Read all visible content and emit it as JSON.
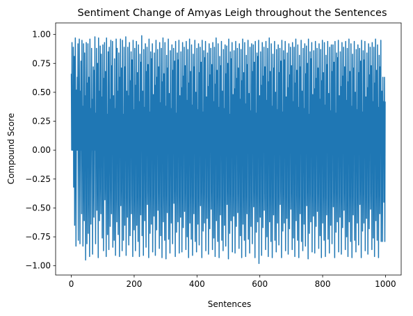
{
  "chart_data": {
    "type": "line",
    "title": "Sentiment Change of Amyas Leigh throughout the Sentences",
    "xlabel": "Sentences",
    "ylabel": "Compound Score",
    "xlim": [
      -50,
      1050
    ],
    "ylim": [
      -1.08,
      1.1
    ],
    "xticks": [
      0,
      200,
      400,
      600,
      800,
      1000
    ],
    "yticks": [
      -1.0,
      -0.75,
      -0.5,
      -0.25,
      0.0,
      0.25,
      0.5,
      0.75,
      1.0
    ],
    "xtick_labels": [
      "0",
      "200",
      "400",
      "600",
      "800",
      "1000"
    ],
    "ytick_labels": [
      "−1.00",
      "−0.75",
      "−0.50",
      "−0.25",
      "0.00",
      "0.25",
      "0.50",
      "0.75",
      "1.00"
    ],
    "grid": false,
    "series_color": "#1f77b4",
    "n_points": 1000,
    "x_start": 0,
    "x_step": 1,
    "series": [
      {
        "values": [
          0.66,
          0.0,
          0.93,
          0.0,
          0.45,
          0.0,
          0.89,
          -0.32,
          0.0,
          0.81,
          -0.65,
          0.0,
          0.97,
          0.42,
          -0.83,
          0.0,
          0.52,
          0.0,
          0.63,
          0.0,
          0.92,
          -0.78,
          0.0,
          0.34,
          0.96,
          0.0,
          -0.81,
          0.51,
          0.0,
          0.77,
          0.0,
          -0.55,
          0.95,
          0.0,
          0.38,
          -0.83,
          0.0,
          0.92,
          0.0,
          -0.61,
          0.84,
          0.0,
          0.47,
          -0.95,
          0.0,
          0.93,
          0.0,
          -0.81,
          0.58,
          0.0,
          0.92,
          -0.72,
          0.0,
          0.63,
          0.0,
          -0.92,
          0.96,
          0.0,
          0.36,
          -0.64,
          0.0,
          0.88,
          0.0,
          0.44,
          -0.9,
          0.0,
          0.72,
          0.0,
          -0.58,
          0.69,
          0.0,
          0.98,
          0.0,
          -0.81,
          0.32,
          0.0,
          0.88,
          -0.52,
          0.0,
          0.75,
          0.0,
          -0.93,
          0.97,
          0.0,
          0.51,
          -0.61,
          0.0,
          0.9,
          0.0,
          -0.55,
          0.83,
          0.0,
          0.46,
          -0.76,
          0.0,
          0.91,
          0.0,
          -0.87,
          0.62,
          0.0,
          0.93,
          -0.43,
          0.0,
          0.68,
          0.0,
          -0.92,
          0.97,
          0.0,
          0.31,
          -0.73,
          0.0,
          0.85,
          0.0,
          -0.86,
          0.89,
          0.0,
          0.44,
          -0.66,
          0.0,
          0.95,
          0.0,
          -0.55,
          0.73,
          0.0,
          0.94,
          -0.84,
          0.0,
          0.47,
          0.0,
          -0.78,
          0.79,
          0.0,
          0.36,
          -0.91,
          0.0,
          0.96,
          0.0,
          -0.62,
          0.88,
          0.0,
          0.51,
          -0.73,
          0.0,
          0.84,
          0.0,
          -0.92,
          0.63,
          0.0,
          0.96,
          -0.48,
          0.0,
          0.71,
          0.0,
          -0.87,
          0.95,
          0.0,
          0.31,
          -0.78,
          0.0,
          0.89,
          0.0,
          -0.65,
          0.72,
          0.0,
          0.98,
          -0.91,
          0.0,
          0.51,
          0.0,
          -0.58,
          0.89,
          0.0,
          0.47,
          -0.82,
          0.0,
          0.93,
          0.0,
          -0.74,
          0.6,
          0.0,
          0.85,
          -0.55,
          0.0,
          0.78,
          0.0,
          -0.92,
          0.95,
          0.0,
          0.35,
          -0.69,
          0.0,
          0.88,
          0.0,
          -0.87,
          0.56,
          0.0,
          0.94,
          -0.65,
          0.0,
          0.67,
          0.0,
          -0.79,
          0.91,
          0.0,
          0.42,
          -0.92,
          0.0,
          0.83,
          0.0,
          -0.56,
          0.76,
          0.0,
          0.99,
          -0.74,
          0.0,
          0.51,
          0.0,
          -0.91,
          0.87,
          0.0,
          0.37,
          -0.61,
          0.0,
          0.92,
          0.0,
          -0.84,
          0.68,
          0.0,
          0.89,
          -0.47,
          0.0,
          0.74,
          0.0,
          -0.93,
          0.96,
          0.0,
          0.33,
          -0.72,
          0.0,
          0.85,
          0.0,
          -0.64,
          0.79,
          0.0,
          0.92,
          -0.88,
          0.0,
          0.48,
          0.0,
          -0.57,
          0.84,
          0.0,
          0.56,
          -0.91,
          0.0,
          0.95,
          0.0,
          -0.69,
          0.63,
          0.0,
          0.87,
          -0.52,
          0.0,
          0.72,
          0.0,
          -0.85,
          0.93,
          0.0,
          0.41,
          -0.74,
          0.0,
          0.88,
          0.0,
          -0.93,
          0.59,
          0.0,
          0.97,
          -0.62,
          0.0,
          0.66,
          0.0,
          -0.78,
          0.93,
          0.0,
          0.38,
          -0.94,
          0.0,
          0.82,
          0.0,
          -0.54,
          0.71,
          0.0,
          0.96,
          -0.77,
          0.0,
          0.49,
          0.0,
          -0.89,
          0.86,
          0.0,
          0.36,
          -0.63,
          0.0,
          0.91,
          0.0,
          -0.81,
          0.69,
          0.0,
          0.88,
          -0.46,
          0.0,
          0.77,
          0.0,
          -0.92,
          0.94,
          0.0,
          0.32,
          -0.71,
          0.0,
          0.84,
          0.0,
          -0.62,
          0.78,
          0.0,
          0.95,
          -0.89,
          0.0,
          0.47,
          0.0,
          -0.58,
          0.85,
          0.0,
          0.54,
          -0.88,
          0.0,
          0.93,
          0.0,
          -0.67,
          0.64,
          0.0,
          0.89,
          -0.53,
          0.0,
          0.73,
          0.0,
          -0.86,
          0.94,
          0.0,
          0.43,
          -0.75,
          0.0,
          0.87,
          0.0,
          -0.93,
          0.58,
          0.0,
          0.96,
          -0.63,
          0.0,
          0.68,
          0.0,
          -0.77,
          0.91,
          0.0,
          0.39,
          -0.91,
          0.0,
          0.83,
          0.0,
          -0.55,
          0.72,
          0.0,
          0.95,
          -0.79,
          0.0,
          0.5,
          0.0,
          -0.88,
          0.88,
          0.0,
          0.35,
          -0.64,
          0.0,
          0.92,
          0.0,
          -0.82,
          0.67,
          0.0,
          0.89,
          -0.48,
          0.0,
          0.76,
          0.0,
          -0.93,
          0.95,
          0.0,
          0.33,
          -0.7,
          0.0,
          0.86,
          0.0,
          -0.63,
          0.8,
          0.0,
          0.94,
          -0.87,
          0.0,
          0.46,
          0.0,
          -0.59,
          0.84,
          0.0,
          0.55,
          -0.9,
          0.0,
          0.92,
          0.0,
          -0.68,
          0.65,
          0.0,
          0.88,
          -0.51,
          0.0,
          0.74,
          0.0,
          -0.86,
          0.93,
          0.0,
          0.42,
          -0.76,
          0.0,
          0.89,
          0.0,
          -0.92,
          0.57,
          0.0,
          0.97,
          -0.61,
          0.0,
          0.69,
          0.0,
          -0.79,
          0.92,
          0.0,
          0.37,
          -0.93,
          0.0,
          0.81,
          0.0,
          -0.56,
          0.73,
          0.0,
          0.94,
          -0.78,
          0.0,
          0.51,
          0.0,
          -0.87,
          0.87,
          0.0,
          0.36,
          -0.65,
          0.0,
          0.91,
          0.0,
          -0.83,
          0.66,
          0.0,
          0.9,
          -0.47,
          0.0,
          0.75,
          0.0,
          -0.94,
          0.96,
          0.0,
          0.31,
          -0.72,
          0.0,
          0.85,
          0.0,
          -0.61,
          0.79,
          0.0,
          0.93,
          -0.88,
          0.0,
          0.48,
          0.0,
          -0.57,
          0.86,
          0.0,
          0.53,
          -0.89,
          0.0,
          0.94,
          0.0,
          -0.66,
          0.62,
          0.0,
          0.88,
          -0.54,
          0.0,
          0.71,
          0.0,
          -0.85,
          0.92,
          0.0,
          0.44,
          -0.74,
          0.0,
          0.87,
          0.0,
          -0.93,
          0.6,
          0.0,
          0.96,
          -0.64,
          0.0,
          0.67,
          0.0,
          -0.78,
          0.93,
          0.0,
          0.4,
          -0.92,
          0.0,
          0.82,
          0.0,
          -0.55,
          0.74,
          0.0,
          0.95,
          -0.77,
          0.0,
          0.49,
          0.0,
          -0.89,
          0.89,
          0.0,
          0.34,
          -0.66,
          0.0,
          0.92,
          0.0,
          -0.81,
          0.68,
          0.0,
          0.91,
          -0.49,
          0.0,
          0.76,
          0.0,
          -0.93,
          0.94,
          0.0,
          0.32,
          -0.71,
          0.0,
          0.84,
          0.0,
          -0.62,
          0.81,
          0.0,
          0.95,
          -0.98,
          0.0,
          0.47,
          0.0,
          -0.58,
          0.85,
          0.0,
          0.56,
          -0.91,
          0.0,
          0.93,
          0.0,
          -0.67,
          0.64,
          0.0,
          0.89,
          -0.52,
          0.0,
          0.72,
          0.0,
          -0.86,
          0.94,
          0.0,
          0.43,
          -0.75,
          0.0,
          0.88,
          0.0,
          -0.92,
          0.59,
          0.0,
          0.97,
          -0.62,
          0.0,
          0.68,
          0.0,
          -0.79,
          0.92,
          0.0,
          0.38,
          -0.93,
          0.0,
          0.83,
          0.0,
          -0.56,
          0.71,
          0.0,
          0.94,
          -0.78,
          0.0,
          0.5,
          0.0,
          -0.88,
          0.87,
          0.0,
          0.35,
          -0.63,
          0.0,
          0.91,
          0.0,
          -0.82,
          0.67,
          0.0,
          0.88,
          -0.47,
          0.0,
          0.77,
          0.0,
          -0.93,
          0.95,
          0.0,
          0.33,
          -0.7,
          0.0,
          0.86,
          0.0,
          -0.63,
          0.78,
          0.0,
          0.94,
          -0.87,
          0.0,
          0.46,
          0.0,
          -0.59,
          0.84,
          0.0,
          0.54,
          -0.9,
          0.0,
          0.92,
          0.0,
          -0.68,
          0.65,
          0.0,
          0.89,
          -0.51,
          0.0,
          0.73,
          0.0,
          -0.86,
          0.93,
          0.0,
          0.42,
          -0.76,
          0.0,
          0.89,
          0.0,
          -0.92,
          0.58,
          0.0,
          0.96,
          -0.61,
          0.0,
          0.69,
          0.0,
          -0.78,
          0.91,
          0.0,
          0.37,
          -0.93,
          0.0,
          0.82,
          0.0,
          -0.55,
          0.72,
          0.0,
          0.95,
          -0.79,
          0.0,
          0.51,
          0.0,
          -0.87,
          0.88,
          0.0,
          0.36,
          -0.64,
          0.0,
          0.92,
          0.0,
          -0.83,
          0.66,
          0.0,
          0.9,
          -0.48,
          0.0,
          0.75,
          0.0,
          -0.94,
          0.96,
          0.0,
          0.31,
          -0.72,
          0.0,
          0.85,
          0.0,
          -0.62,
          0.79,
          0.0,
          0.93,
          -0.88,
          0.0,
          0.48,
          0.0,
          -0.57,
          0.86,
          0.0,
          0.53,
          -0.89,
          0.0,
          0.94,
          0.0,
          -0.66,
          0.62,
          0.0,
          0.88,
          -0.53,
          0.0,
          0.71,
          0.0,
          -0.85,
          0.92,
          0.0,
          0.44,
          -0.74,
          0.0,
          0.87,
          0.0,
          -0.93,
          0.6,
          0.0,
          0.95,
          -0.63,
          0.0,
          0.67,
          0.0,
          -0.78,
          0.93,
          0.0,
          0.39,
          -0.92,
          0.0,
          0.82,
          0.0,
          -0.56,
          0.74,
          0.0,
          0.94,
          -0.77,
          0.0,
          0.49,
          0.0,
          -0.89,
          0.89,
          0.0,
          0.34,
          -0.65,
          0.0,
          0.91,
          0.0,
          -0.81,
          0.68,
          0.0,
          0.91,
          -0.49,
          0.0,
          0.76,
          0.0,
          -0.93,
          0.94,
          0.0,
          0.32,
          -0.71,
          0.0,
          0.84,
          0.0,
          -0.62,
          0.8,
          0.0,
          0.95,
          -0.88,
          0.0,
          0.47,
          0.0,
          -0.58,
          0.85,
          0.0,
          0.55,
          -0.9,
          0.0,
          0.93,
          0.0,
          -0.67,
          0.64,
          0.0,
          0.89,
          -0.52,
          0.0,
          0.72,
          0.0,
          -0.86,
          0.94,
          0.0,
          0.43,
          -0.75,
          0.0,
          0.88,
          0.0,
          -0.92,
          0.59,
          0.0,
          0.96,
          -0.62,
          0.0,
          0.68,
          0.0,
          -0.79,
          0.92,
          0.0,
          0.38,
          -0.93,
          0.0,
          0.83,
          0.0,
          -0.56,
          0.71,
          0.0,
          0.94,
          -0.78,
          0.0,
          0.5,
          0.0,
          -0.88,
          0.87,
          0.0,
          0.35,
          -0.63,
          0.0,
          0.91,
          0.0,
          -0.82,
          0.67,
          0.0,
          0.88,
          -0.47,
          0.0,
          0.77,
          0.0,
          -0.93,
          0.95,
          0.0,
          0.33,
          -0.7,
          0.0,
          0.86,
          0.0,
          -0.63,
          0.78,
          0.0,
          0.94,
          -0.87,
          0.0,
          0.46,
          0.0,
          -0.59,
          0.84,
          0.0,
          0.54,
          -0.9,
          0.0,
          0.92,
          0.0,
          -0.68,
          0.65,
          0.0,
          0.89,
          -0.51,
          0.0,
          0.73,
          0.0,
          -0.86,
          0.93,
          0.0,
          0.42,
          -0.76,
          0.0,
          0.89,
          0.0,
          -0.92,
          0.58,
          0.0,
          0.96,
          -0.61,
          0.0,
          0.69,
          0.0,
          -0.78,
          0.91,
          0.0,
          0.37,
          -0.93,
          0.0,
          0.82,
          0.0,
          -0.55,
          0.72,
          0.0,
          0.95,
          -0.79,
          0.0,
          0.51,
          0.0,
          -0.79,
          0.63,
          0.0,
          0.42,
          -0.45,
          0.0,
          0.63,
          -0.79,
          0.42
        ]
      }
    ]
  }
}
